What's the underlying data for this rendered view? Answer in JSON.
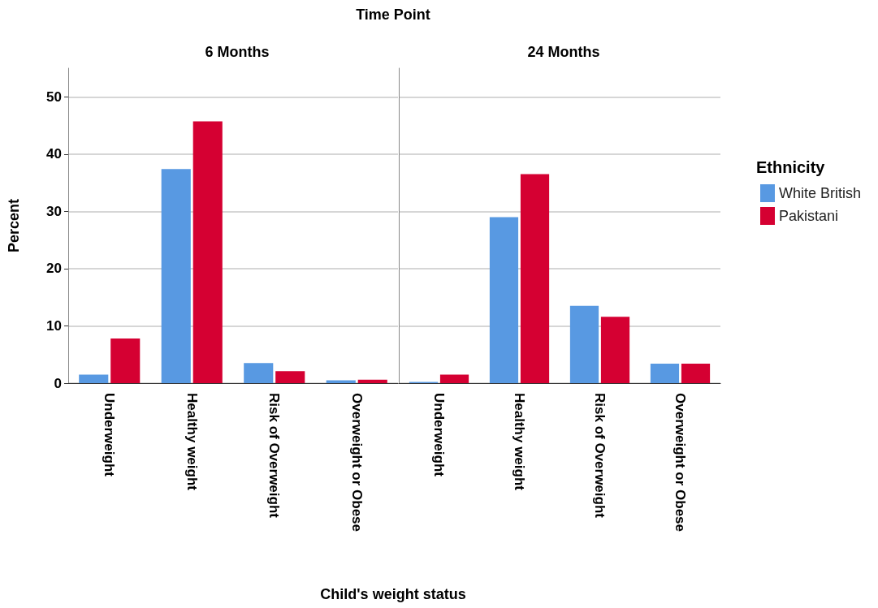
{
  "chart_data": [
    {
      "type": "bar",
      "title": "6 Months",
      "annotations": [
        "Time Point"
      ],
      "xlabel": "Child's weight status",
      "ylabel": "Percent",
      "categories": [
        "Underweight",
        "Healthy weight",
        "Risk of Overweight",
        "Overweight or Obese"
      ],
      "series": [
        {
          "color": "#5899e2",
          "values": [
            1.5,
            37.4,
            3.5,
            0.5
          ]
        },
        {
          "color": "#d50032",
          "values": [
            7.8,
            45.7,
            2.1,
            0.6
          ]
        }
      ],
      "ylim": [
        0,
        55
      ],
      "yticks": [
        0,
        10,
        20,
        30,
        40,
        50
      ],
      "grid": "y",
      "legend": false
    },
    {
      "type": "bar",
      "title": "24 Months",
      "categories": [
        "Underweight",
        "Healthy weight",
        "Risk of Overweight",
        "Overweight or Obese"
      ],
      "series": [
        {
          "name": "White British",
          "color": "#5899e2",
          "values": [
            0.2,
            29.0,
            13.5,
            3.4
          ]
        },
        {
          "name": "Pakistani",
          "color": "#d50032",
          "values": [
            1.5,
            36.5,
            11.6,
            3.4
          ]
        }
      ],
      "ylim": [
        0,
        55
      ],
      "yticks": [
        0,
        10,
        20,
        30,
        40,
        50
      ],
      "grid": "y",
      "legend": "right",
      "legend_title": "Ethnicity",
      "tick_labels": "x"
    }
  ]
}
